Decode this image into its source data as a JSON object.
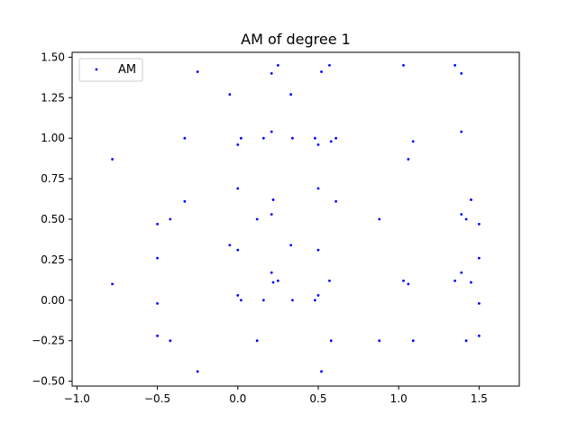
{
  "chart_data": {
    "type": "scatter",
    "title": "AM of degree 1",
    "xlabel": "",
    "ylabel": "",
    "xlim": [
      -1.03,
      1.75
    ],
    "ylim": [
      -0.53,
      1.53
    ],
    "x_ticks": [
      -1.0,
      -0.5,
      0.0,
      0.5,
      1.0,
      1.5
    ],
    "x_tick_labels": [
      "−1.0",
      "−0.5",
      "0.0",
      "0.5",
      "1.0",
      "1.5"
    ],
    "y_ticks": [
      -0.5,
      -0.25,
      0.0,
      0.25,
      0.5,
      0.75,
      1.0,
      1.25,
      1.5
    ],
    "y_tick_labels": [
      "−0.50",
      "−0.25",
      "0.00",
      "0.25",
      "0.50",
      "0.75",
      "1.00",
      "1.25",
      "1.50"
    ],
    "grid": false,
    "legend": {
      "position": "top-left",
      "entries": [
        "AM"
      ]
    },
    "colors": {
      "series": "#0000ff",
      "axes": "#000000",
      "background": "#ffffff",
      "legend_border": "#cccccc"
    },
    "series": [
      {
        "name": "AM",
        "color": "#0000ff",
        "points": [
          [
            -0.78,
            0.87
          ],
          [
            -0.78,
            0.1
          ],
          [
            -0.5,
            0.47
          ],
          [
            -0.5,
            0.26
          ],
          [
            -0.5,
            -0.02
          ],
          [
            -0.5,
            -0.22
          ],
          [
            -0.42,
            0.5
          ],
          [
            -0.42,
            -0.25
          ],
          [
            -0.33,
            1.0
          ],
          [
            -0.33,
            0.61
          ],
          [
            -0.25,
            1.41
          ],
          [
            -0.25,
            -0.44
          ],
          [
            -0.05,
            1.27
          ],
          [
            -0.05,
            0.34
          ],
          [
            0.0,
            0.96
          ],
          [
            0.0,
            0.69
          ],
          [
            0.0,
            0.31
          ],
          [
            0.0,
            0.03
          ],
          [
            0.02,
            1.0
          ],
          [
            0.02,
            0.0
          ],
          [
            0.12,
            0.5
          ],
          [
            0.12,
            -0.25
          ],
          [
            0.16,
            1.0
          ],
          [
            0.16,
            0.0
          ],
          [
            0.21,
            1.4
          ],
          [
            0.21,
            1.04
          ],
          [
            0.21,
            0.53
          ],
          [
            0.21,
            0.17
          ],
          [
            0.22,
            0.62
          ],
          [
            0.22,
            0.11
          ],
          [
            0.25,
            1.45
          ],
          [
            0.25,
            0.12
          ],
          [
            0.33,
            1.27
          ],
          [
            0.33,
            0.34
          ],
          [
            0.34,
            1.0
          ],
          [
            0.34,
            0.0
          ],
          [
            0.48,
            1.0
          ],
          [
            0.48,
            0.0
          ],
          [
            0.5,
            0.96
          ],
          [
            0.5,
            0.69
          ],
          [
            0.5,
            0.31
          ],
          [
            0.5,
            0.03
          ],
          [
            0.52,
            1.41
          ],
          [
            0.52,
            -0.44
          ],
          [
            0.57,
            1.45
          ],
          [
            0.57,
            0.12
          ],
          [
            0.58,
            0.98
          ],
          [
            0.58,
            -0.25
          ],
          [
            0.61,
            1.0
          ],
          [
            0.61,
            0.61
          ],
          [
            0.88,
            0.5
          ],
          [
            0.88,
            -0.25
          ],
          [
            1.03,
            1.45
          ],
          [
            1.03,
            0.12
          ],
          [
            1.06,
            0.87
          ],
          [
            1.06,
            0.1
          ],
          [
            1.09,
            0.98
          ],
          [
            1.09,
            -0.25
          ],
          [
            1.35,
            1.45
          ],
          [
            1.35,
            0.12
          ],
          [
            1.39,
            1.4
          ],
          [
            1.39,
            1.04
          ],
          [
            1.39,
            0.53
          ],
          [
            1.39,
            0.17
          ],
          [
            1.42,
            0.5
          ],
          [
            1.42,
            -0.25
          ],
          [
            1.45,
            0.62
          ],
          [
            1.45,
            0.11
          ],
          [
            1.5,
            0.47
          ],
          [
            1.5,
            0.26
          ],
          [
            1.5,
            -0.02
          ],
          [
            1.5,
            -0.22
          ]
        ]
      }
    ]
  }
}
